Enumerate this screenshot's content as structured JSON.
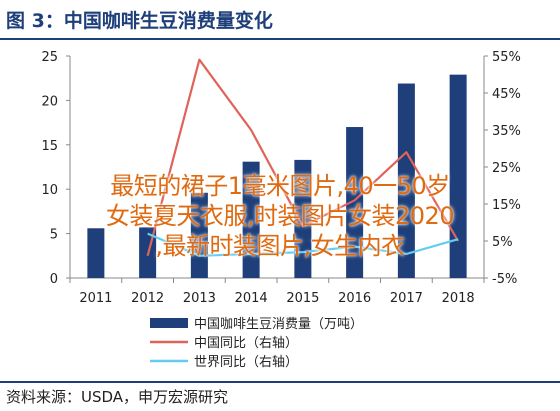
{
  "header": {
    "title": "图 3：中国咖啡生豆消费量变化"
  },
  "footer": {
    "source": "资料来源：USDA，申万宏源研究"
  },
  "overlay": {
    "line1": "最短的裙子1毫米图片,40一50岁",
    "line2": "女装夏天衣服,时装图片女装2020",
    "line3": ",最新时装图片,女生内衣"
  },
  "colors": {
    "bar": "#1e3f7a",
    "china_line": "#e0635a",
    "world_line": "#66ccee",
    "overlay_text": "#e06a10"
  },
  "chart_data": {
    "type": "bar",
    "title": "图 3：中国咖啡生豆消费量变化",
    "categories": [
      "2011",
      "2012",
      "2013",
      "2014",
      "2015",
      "2016",
      "2017",
      "2018"
    ],
    "ylim": [
      0,
      25
    ],
    "yticks": [
      "0",
      "5",
      "10",
      "15",
      "20",
      "25"
    ],
    "y2lim": [
      -5,
      55
    ],
    "y2ticks": [
      "-5%",
      "5%",
      "15%",
      "25%",
      "35%",
      "45%",
      "55%"
    ],
    "grid": false,
    "legend_position": "bottom",
    "series": [
      {
        "name": "中国咖啡生豆消费量（万吨）",
        "type": "bar",
        "axis": "left",
        "values": [
          5.6,
          5.7,
          9.6,
          13.1,
          13.3,
          17.0,
          21.9,
          22.9
        ]
      },
      {
        "name": "中国同比（右轴）",
        "type": "line",
        "axis": "right",
        "values": [
          null,
          1.0,
          54.0,
          35.0,
          9.0,
          16.0,
          29.0,
          5.0
        ]
      },
      {
        "name": "世界同比（右轴）",
        "type": "line",
        "axis": "right",
        "values": [
          null,
          7.0,
          1.0,
          1.5,
          2.0,
          3.5,
          1.5,
          5.5
        ]
      }
    ]
  }
}
